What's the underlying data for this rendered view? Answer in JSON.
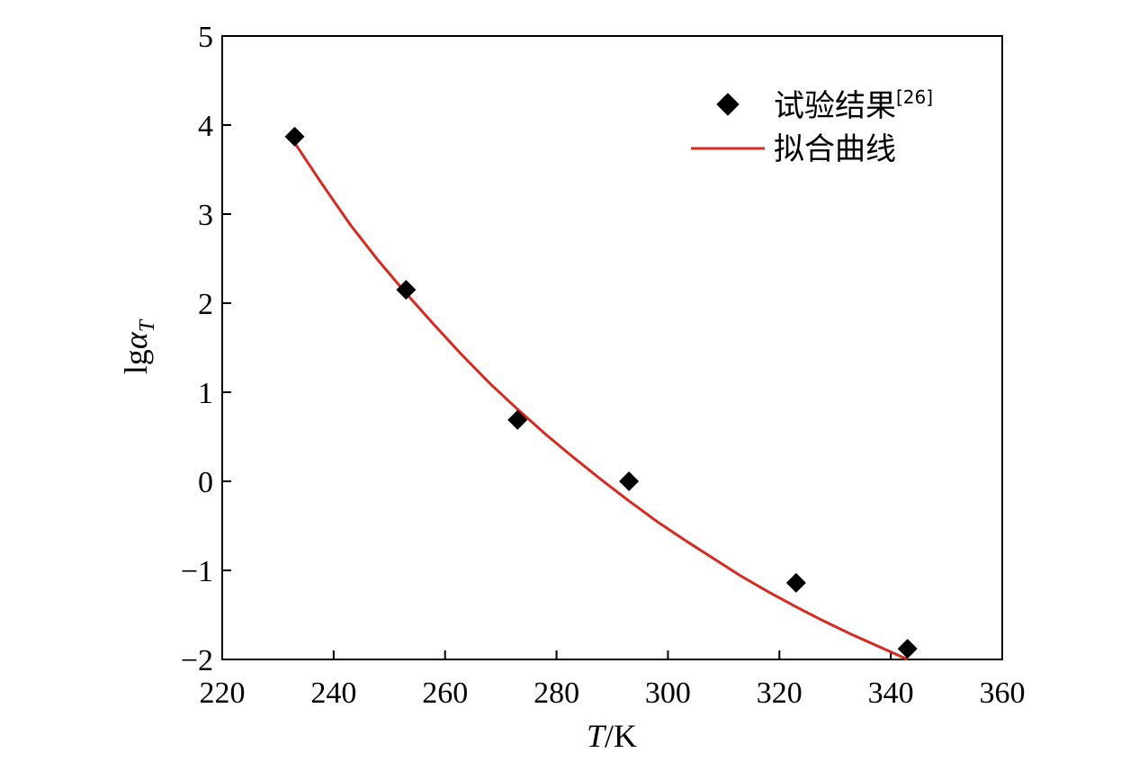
{
  "chart_data": {
    "type": "scatter",
    "xlim": [
      220,
      360
    ],
    "ylim": [
      -2,
      5
    ],
    "x_ticks": [
      220,
      240,
      260,
      280,
      300,
      320,
      340,
      360
    ],
    "y_ticks": [
      -2,
      -1,
      0,
      1,
      2,
      3,
      4,
      5
    ],
    "x_tick_labels": [
      "220",
      "240",
      "260",
      "280",
      "300",
      "320",
      "340",
      "360"
    ],
    "y_tick_labels": [
      "−2",
      "−1",
      "0",
      "1",
      "2",
      "3",
      "4",
      "5"
    ],
    "xlabel": {
      "var": "T",
      "unit": "/K"
    },
    "ylabel": {
      "prefix": "lg",
      "var": "α",
      "sub": "T"
    },
    "grid": false,
    "legend_position": "top-right",
    "series": [
      {
        "name": "试验结果",
        "name_sup": "[26]",
        "kind": "scatter",
        "marker": "diamond",
        "color": "#000000",
        "x": [
          233,
          253,
          273,
          293,
          323,
          343
        ],
        "y": [
          3.87,
          2.15,
          0.69,
          0.0,
          -1.14,
          -1.88
        ]
      },
      {
        "name": "拟合曲线",
        "kind": "line",
        "color": "#d42a1f",
        "x": [
          233,
          238,
          243,
          248,
          253,
          258,
          263,
          268,
          273,
          278,
          283,
          288,
          293,
          298,
          303,
          308,
          313,
          318,
          323,
          328,
          333,
          338,
          343
        ],
        "y": [
          3.8,
          3.33,
          2.88,
          2.48,
          2.11,
          1.76,
          1.42,
          1.1,
          0.81,
          0.53,
          0.27,
          0.02,
          -0.22,
          -0.45,
          -0.66,
          -0.86,
          -1.06,
          -1.24,
          -1.41,
          -1.57,
          -1.72,
          -1.86,
          -2.0
        ]
      }
    ]
  }
}
